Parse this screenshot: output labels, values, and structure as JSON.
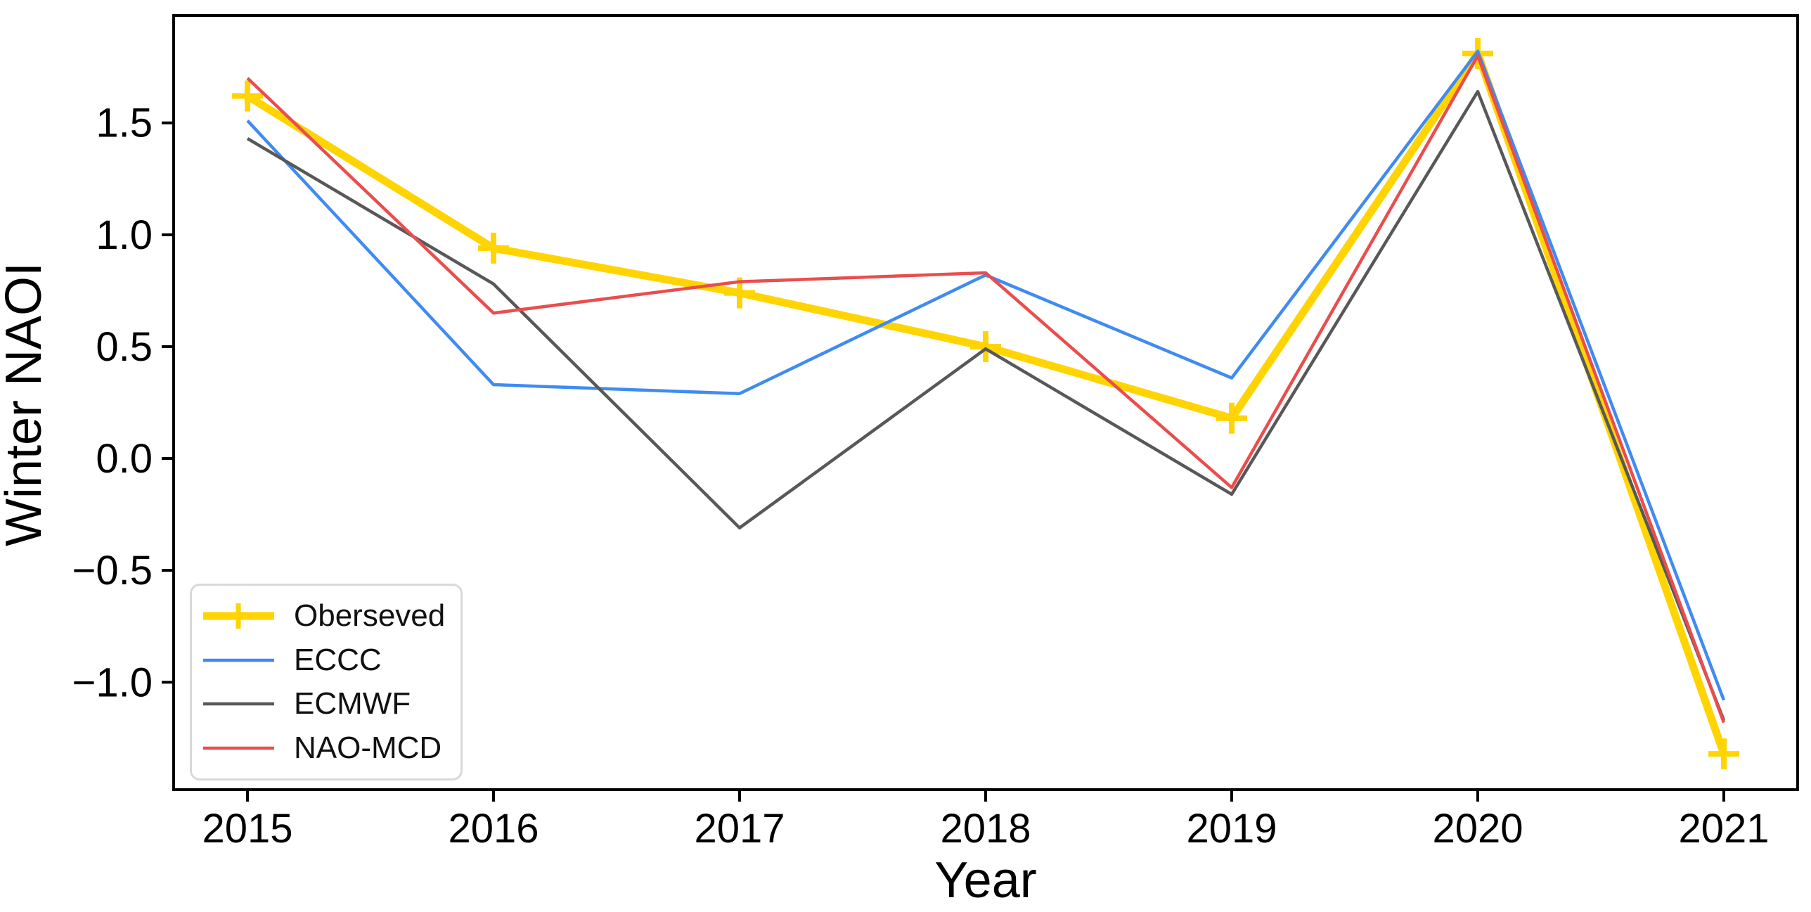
{
  "chart_data": {
    "type": "line",
    "title": "",
    "xlabel": "Year",
    "ylabel": "Winter NAOI",
    "grid": false,
    "legend_position": "lower left",
    "xlim": [
      2014.7,
      2021.3
    ],
    "ylim": [
      -1.48,
      1.98
    ],
    "x": [
      2015,
      2016,
      2017,
      2018,
      2019,
      2020,
      2021
    ],
    "xtick_labels": [
      "2015",
      "2016",
      "2017",
      "2018",
      "2019",
      "2020",
      "2021"
    ],
    "yticks": [
      -1.0,
      -0.5,
      0.0,
      0.5,
      1.0,
      1.5
    ],
    "ytick_labels": [
      "−1.0",
      "−0.5",
      "0.0",
      "0.5",
      "1.0",
      "1.5"
    ],
    "series": [
      {
        "name": "Oberseved",
        "color": "#FFD400",
        "line_width": 11,
        "marker": "plus",
        "values": [
          1.62,
          0.94,
          0.74,
          0.5,
          0.18,
          1.81,
          -1.32
        ]
      },
      {
        "name": "ECCC",
        "color": "#3F8BF2",
        "line_width": 4.5,
        "marker": "none",
        "values": [
          1.51,
          0.33,
          0.29,
          0.82,
          0.36,
          1.82,
          -1.08
        ]
      },
      {
        "name": "ECMWF",
        "color": "#585858",
        "line_width": 4.5,
        "marker": "none",
        "values": [
          1.43,
          0.78,
          -0.31,
          0.49,
          -0.16,
          1.64,
          -1.17
        ]
      },
      {
        "name": "NAO-MCD",
        "color": "#EA4D4D",
        "line_width": 4.5,
        "marker": "none",
        "values": [
          1.7,
          0.65,
          0.79,
          0.83,
          -0.13,
          1.8,
          -1.18
        ]
      }
    ]
  }
}
